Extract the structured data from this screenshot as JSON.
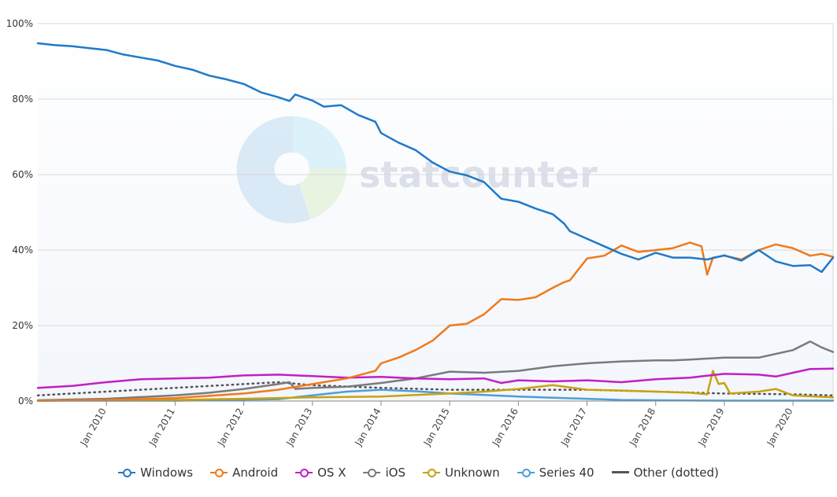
{
  "chart_data": {
    "type": "line",
    "title": "",
    "xlabel": "",
    "ylabel": "",
    "ylim": [
      0,
      100
    ],
    "y_ticks": [
      "0%",
      "20%",
      "40%",
      "60%",
      "80%",
      "100%"
    ],
    "x_ticks": [
      "Jan 2010",
      "Jan 2011",
      "Jan 2012",
      "Jan 2013",
      "Jan 2014",
      "Jan 2015",
      "Jan 2016",
      "Jan 2017",
      "Jan 2018",
      "Jan 2019",
      "Jan 2020"
    ],
    "x_range": [
      "2009-01",
      "2020-08"
    ],
    "grid": true,
    "legend_position": "bottom",
    "watermark": "statcounter",
    "series": [
      {
        "name": "Windows",
        "color": "#1f7ac9",
        "dash": false,
        "points": [
          [
            "2009-01",
            94.8
          ],
          [
            "2009-04",
            94.3
          ],
          [
            "2009-07",
            94.0
          ],
          [
            "2009-10",
            93.5
          ],
          [
            "2010-01",
            93.0
          ],
          [
            "2010-04",
            91.8
          ],
          [
            "2010-07",
            91.0
          ],
          [
            "2010-10",
            90.2
          ],
          [
            "2011-01",
            88.8
          ],
          [
            "2011-04",
            87.8
          ],
          [
            "2011-07",
            86.2
          ],
          [
            "2011-10",
            85.2
          ],
          [
            "2012-01",
            84.0
          ],
          [
            "2012-04",
            81.8
          ],
          [
            "2012-07",
            80.5
          ],
          [
            "2012-09",
            79.5
          ],
          [
            "2012-10",
            81.2
          ],
          [
            "2013-01",
            79.6
          ],
          [
            "2013-03",
            78.0
          ],
          [
            "2013-06",
            78.4
          ],
          [
            "2013-09",
            75.8
          ],
          [
            "2013-12",
            74.0
          ],
          [
            "2014-01",
            71.0
          ],
          [
            "2014-04",
            68.5
          ],
          [
            "2014-07",
            66.5
          ],
          [
            "2014-10",
            63.2
          ],
          [
            "2015-01",
            60.8
          ],
          [
            "2015-04",
            59.8
          ],
          [
            "2015-07",
            58.0
          ],
          [
            "2015-10",
            53.6
          ],
          [
            "2016-01",
            52.8
          ],
          [
            "2016-04",
            51.0
          ],
          [
            "2016-07",
            49.5
          ],
          [
            "2016-09",
            47.0
          ],
          [
            "2016-10",
            45.0
          ],
          [
            "2017-01",
            43.0
          ],
          [
            "2017-04",
            41.0
          ],
          [
            "2017-07",
            39.0
          ],
          [
            "2017-10",
            37.5
          ],
          [
            "2018-01",
            39.3
          ],
          [
            "2018-04",
            38.0
          ],
          [
            "2018-07",
            38.0
          ],
          [
            "2018-10",
            37.5
          ],
          [
            "2019-01",
            38.6
          ],
          [
            "2019-04",
            37.2
          ],
          [
            "2019-07",
            40.0
          ],
          [
            "2019-10",
            37.0
          ],
          [
            "2020-01",
            35.8
          ],
          [
            "2020-04",
            36.0
          ],
          [
            "2020-06",
            34.2
          ],
          [
            "2020-08",
            38.0
          ]
        ]
      },
      {
        "name": "Android",
        "color": "#f07a1a",
        "dash": false,
        "points": [
          [
            "2009-01",
            0.1
          ],
          [
            "2010-01",
            0.3
          ],
          [
            "2011-01",
            0.8
          ],
          [
            "2012-01",
            2.0
          ],
          [
            "2012-07",
            3.0
          ],
          [
            "2013-01",
            4.5
          ],
          [
            "2013-07",
            6.0
          ],
          [
            "2013-12",
            8.0
          ],
          [
            "2014-01",
            10.0
          ],
          [
            "2014-04",
            11.5
          ],
          [
            "2014-07",
            13.5
          ],
          [
            "2014-10",
            16.0
          ],
          [
            "2015-01",
            20.0
          ],
          [
            "2015-04",
            20.5
          ],
          [
            "2015-07",
            23.0
          ],
          [
            "2015-10",
            27.0
          ],
          [
            "2016-01",
            26.8
          ],
          [
            "2016-04",
            27.5
          ],
          [
            "2016-07",
            30.0
          ],
          [
            "2016-09",
            31.5
          ],
          [
            "2016-10",
            32.0
          ],
          [
            "2017-01",
            37.8
          ],
          [
            "2017-04",
            38.5
          ],
          [
            "2017-07",
            41.2
          ],
          [
            "2017-10",
            39.5
          ],
          [
            "2018-01",
            40.0
          ],
          [
            "2018-04",
            40.5
          ],
          [
            "2018-07",
            42.0
          ],
          [
            "2018-09",
            41.0
          ],
          [
            "2018-10",
            33.5
          ],
          [
            "2018-11",
            38.0
          ],
          [
            "2019-01",
            38.5
          ],
          [
            "2019-04",
            37.5
          ],
          [
            "2019-07",
            40.0
          ],
          [
            "2019-10",
            41.5
          ],
          [
            "2020-01",
            40.5
          ],
          [
            "2020-04",
            38.5
          ],
          [
            "2020-06",
            39.0
          ],
          [
            "2020-08",
            38.2
          ]
        ]
      },
      {
        "name": "OS X",
        "color": "#c21fc4",
        "dash": false,
        "points": [
          [
            "2009-01",
            3.5
          ],
          [
            "2009-07",
            4.0
          ],
          [
            "2010-01",
            5.0
          ],
          [
            "2010-07",
            5.8
          ],
          [
            "2011-01",
            6.0
          ],
          [
            "2011-07",
            6.2
          ],
          [
            "2012-01",
            6.8
          ],
          [
            "2012-07",
            7.0
          ],
          [
            "2013-01",
            6.6
          ],
          [
            "2013-07",
            6.2
          ],
          [
            "2014-01",
            6.4
          ],
          [
            "2014-07",
            6.0
          ],
          [
            "2015-01",
            5.8
          ],
          [
            "2015-07",
            6.0
          ],
          [
            "2015-10",
            4.8
          ],
          [
            "2016-01",
            5.5
          ],
          [
            "2016-07",
            5.2
          ],
          [
            "2017-01",
            5.5
          ],
          [
            "2017-07",
            5.0
          ],
          [
            "2018-01",
            5.8
          ],
          [
            "2018-07",
            6.2
          ],
          [
            "2019-01",
            7.2
          ],
          [
            "2019-07",
            7.0
          ],
          [
            "2019-10",
            6.5
          ],
          [
            "2020-01",
            7.5
          ],
          [
            "2020-04",
            8.5
          ],
          [
            "2020-08",
            8.6
          ]
        ]
      },
      {
        "name": "iOS",
        "color": "#7a7a7a",
        "dash": false,
        "points": [
          [
            "2009-01",
            0.2
          ],
          [
            "2010-01",
            0.6
          ],
          [
            "2011-01",
            1.5
          ],
          [
            "2011-07",
            2.2
          ],
          [
            "2012-01",
            3.2
          ],
          [
            "2012-07",
            4.5
          ],
          [
            "2012-09",
            5.0
          ],
          [
            "2012-10",
            3.2
          ],
          [
            "2013-01",
            3.5
          ],
          [
            "2013-07",
            3.8
          ],
          [
            "2014-01",
            4.8
          ],
          [
            "2014-07",
            6.0
          ],
          [
            "2015-01",
            7.8
          ],
          [
            "2015-07",
            7.5
          ],
          [
            "2016-01",
            8.0
          ],
          [
            "2016-07",
            9.2
          ],
          [
            "2017-01",
            10.0
          ],
          [
            "2017-07",
            10.5
          ],
          [
            "2018-01",
            10.8
          ],
          [
            "2018-04",
            10.8
          ],
          [
            "2018-07",
            11.0
          ],
          [
            "2019-01",
            11.5
          ],
          [
            "2019-07",
            11.5
          ],
          [
            "2020-01",
            13.5
          ],
          [
            "2020-04",
            15.8
          ],
          [
            "2020-06",
            14.2
          ],
          [
            "2020-08",
            13.0
          ]
        ]
      },
      {
        "name": "Unknown",
        "color": "#c8a210",
        "dash": false,
        "points": [
          [
            "2009-01",
            0.1
          ],
          [
            "2011-01",
            0.3
          ],
          [
            "2012-01",
            0.6
          ],
          [
            "2013-01",
            1.0
          ],
          [
            "2014-01",
            1.2
          ],
          [
            "2015-01",
            2.0
          ],
          [
            "2015-07",
            2.5
          ],
          [
            "2016-01",
            3.2
          ],
          [
            "2016-07",
            4.2
          ],
          [
            "2017-01",
            3.0
          ],
          [
            "2017-07",
            2.8
          ],
          [
            "2018-01",
            2.5
          ],
          [
            "2018-07",
            2.2
          ],
          [
            "2018-10",
            1.8
          ],
          [
            "2018-11",
            8.0
          ],
          [
            "2018-12",
            4.5
          ],
          [
            "2019-01",
            4.8
          ],
          [
            "2019-02",
            2.0
          ],
          [
            "2019-07",
            2.5
          ],
          [
            "2019-10",
            3.2
          ],
          [
            "2020-01",
            1.5
          ],
          [
            "2020-08",
            1.0
          ]
        ]
      },
      {
        "name": "Series 40",
        "color": "#4a9fd8",
        "dash": false,
        "points": [
          [
            "2009-01",
            0.1
          ],
          [
            "2011-01",
            0.1
          ],
          [
            "2012-07",
            0.5
          ],
          [
            "2013-01",
            1.5
          ],
          [
            "2013-07",
            2.5
          ],
          [
            "2014-01",
            3.0
          ],
          [
            "2014-07",
            2.6
          ],
          [
            "2015-01",
            2.0
          ],
          [
            "2015-07",
            1.6
          ],
          [
            "2016-01",
            1.2
          ],
          [
            "2016-07",
            0.9
          ],
          [
            "2017-01",
            0.6
          ],
          [
            "2017-07",
            0.3
          ],
          [
            "2018-01",
            0.2
          ],
          [
            "2019-01",
            0.1
          ],
          [
            "2020-08",
            0.1
          ]
        ]
      },
      {
        "name": "Other (dotted)",
        "color": "#555555",
        "dash": true,
        "points": [
          [
            "2009-01",
            1.5
          ],
          [
            "2010-01",
            2.5
          ],
          [
            "2011-01",
            3.5
          ],
          [
            "2012-01",
            4.5
          ],
          [
            "2012-07",
            5.0
          ],
          [
            "2013-01",
            4.2
          ],
          [
            "2014-01",
            3.5
          ],
          [
            "2015-01",
            3.0
          ],
          [
            "2016-01",
            3.0
          ],
          [
            "2017-01",
            3.0
          ],
          [
            "2018-01",
            2.5
          ],
          [
            "2019-01",
            2.0
          ],
          [
            "2020-01",
            1.8
          ],
          [
            "2020-08",
            1.5
          ]
        ]
      }
    ]
  },
  "legend": [
    {
      "label": "Windows",
      "color": "#1f7ac9",
      "marker": "circle"
    },
    {
      "label": "Android",
      "color": "#f07a1a",
      "marker": "circle"
    },
    {
      "label": "OS X",
      "color": "#c21fc4",
      "marker": "circle"
    },
    {
      "label": "iOS",
      "color": "#7a7a7a",
      "marker": "circle"
    },
    {
      "label": "Unknown",
      "color": "#c8a210",
      "marker": "circle"
    },
    {
      "label": "Series 40",
      "color": "#4a9fd8",
      "marker": "circle"
    },
    {
      "label": "Other (dotted)",
      "color": "#555555",
      "marker": "line"
    }
  ]
}
